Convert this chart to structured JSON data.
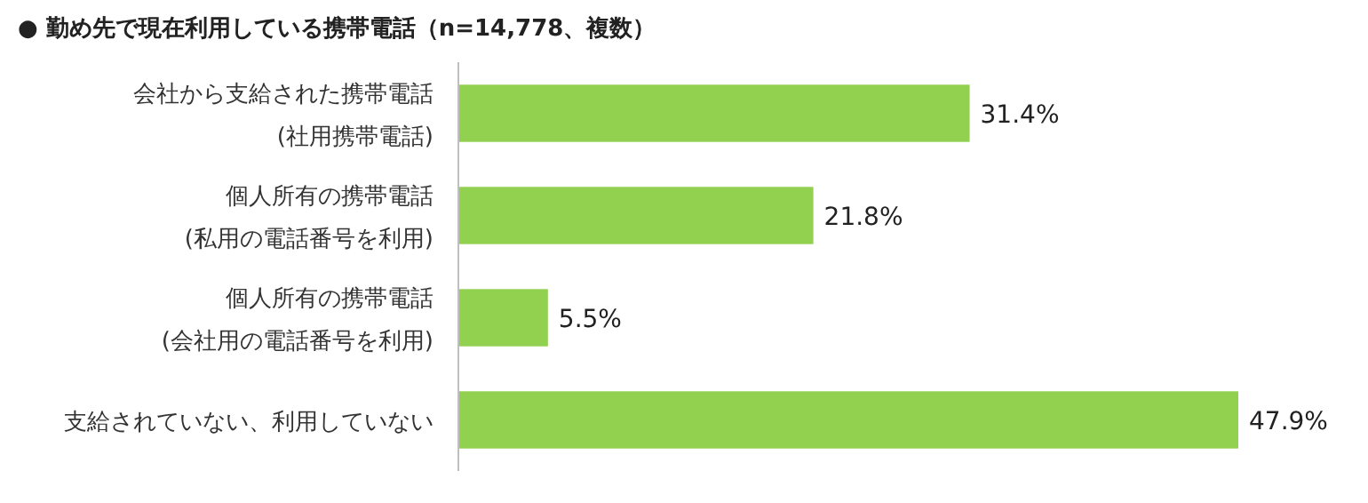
{
  "chart_data": {
    "type": "bar",
    "orientation": "horizontal",
    "title": "● 勤め先で現在利用している携帯電話（n=14,778、複数）",
    "categories": [
      "会社から支給された携帯電話\n(社用携帯電話)",
      "個人所有の携帯電話\n(私用の電話番号を利用)",
      "個人所有の携帯電話\n(会社用の電話番号を利用)",
      "支給されていない、利用していない"
    ],
    "values": [
      31.4,
      21.8,
      5.5,
      47.9
    ],
    "value_labels": [
      "31.4%",
      "21.8%",
      "5.5%",
      "47.9%"
    ],
    "color": "#92d050"
  }
}
